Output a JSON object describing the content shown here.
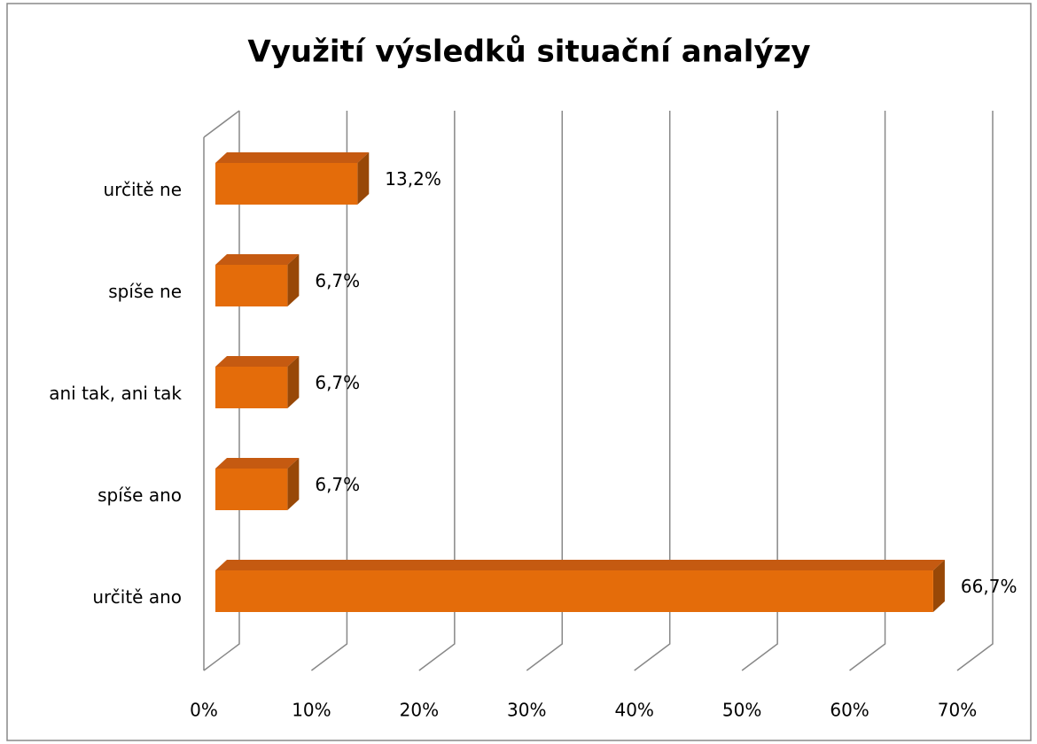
{
  "chart_data": {
    "type": "bar3d",
    "orientation": "horizontal",
    "title": "Využití výsledků situační analýzy",
    "categories": [
      "určitě ne",
      "spíše ne",
      "ani tak, ani tak",
      "spíše ano",
      "určitě ano"
    ],
    "values": [
      13.2,
      6.7,
      6.7,
      6.7,
      66.7
    ],
    "value_labels": [
      "13,2%",
      "6,7%",
      "6,7%",
      "6,7%",
      "66,7%"
    ],
    "color": "#e46c0a",
    "xlim": [
      0,
      70
    ],
    "xticks": [
      {
        "value": 0,
        "label": "0%"
      },
      {
        "value": 10,
        "label": "10%"
      },
      {
        "value": 20,
        "label": "20%"
      },
      {
        "value": 30,
        "label": "30%"
      },
      {
        "value": 40,
        "label": "40%"
      },
      {
        "value": 50,
        "label": "50%"
      },
      {
        "value": 60,
        "label": "60%"
      },
      {
        "value": 70,
        "label": "70%"
      }
    ],
    "grid": true
  }
}
